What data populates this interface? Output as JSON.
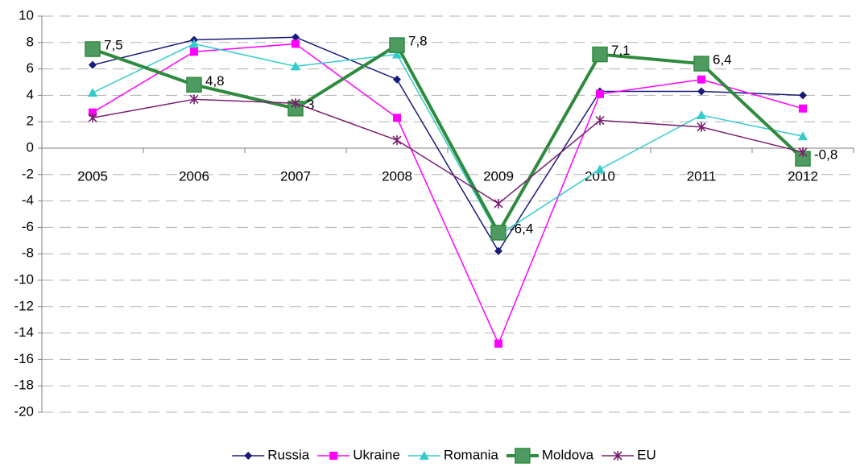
{
  "chart_data": {
    "type": "line",
    "categories": [
      "2005",
      "2006",
      "2007",
      "2008",
      "2009",
      "2010",
      "2011",
      "2012"
    ],
    "ylim": [
      -20,
      10
    ],
    "yticks": [
      -20,
      -18,
      -16,
      -14,
      -12,
      -10,
      -8,
      -6,
      -4,
      -2,
      0,
      2,
      4,
      6,
      8,
      10
    ],
    "grid": true,
    "legend": "bottom",
    "series": [
      {
        "name": "Russia",
        "color": "#1a1a7a",
        "marker": "diamond",
        "values": [
          6.3,
          8.2,
          8.4,
          5.2,
          -7.8,
          4.3,
          4.3,
          4.0
        ]
      },
      {
        "name": "Ukraine",
        "color": "#ff00ff",
        "marker": "square",
        "values": [
          2.7,
          7.3,
          7.9,
          2.3,
          -14.8,
          4.1,
          5.2,
          3.0
        ]
      },
      {
        "name": "Romania",
        "color": "#33cccc",
        "marker": "triangle",
        "values": [
          4.2,
          7.9,
          6.2,
          7.1,
          -6.6,
          -1.6,
          2.5,
          0.9
        ]
      },
      {
        "name": "Moldova",
        "color": "#2e8b3e",
        "marker": "big-square",
        "values": [
          7.5,
          4.8,
          3.0,
          7.8,
          -6.4,
          7.1,
          6.4,
          -0.8
        ],
        "value_labels": [
          "7,5",
          "4,8",
          "3",
          "7,8",
          "-6,4",
          "7,1",
          "6,4",
          "-0,8"
        ]
      },
      {
        "name": "EU",
        "color": "#7a1f6e",
        "marker": "asterisk",
        "values": [
          2.3,
          3.7,
          3.4,
          0.6,
          -4.2,
          2.1,
          1.6,
          -0.3
        ]
      }
    ]
  }
}
